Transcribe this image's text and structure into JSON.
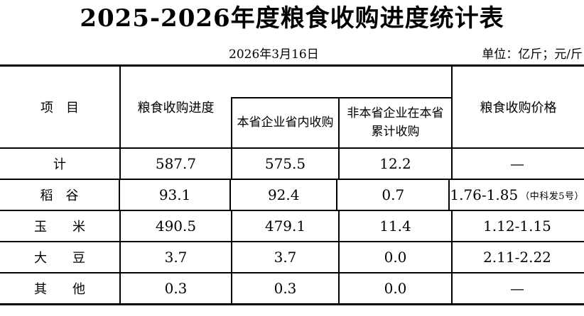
{
  "title": "2025-2026年度粮食收购进度统计表",
  "meta": {
    "date": "2026年3月16日",
    "unit": "单位：亿斤；元/斤"
  },
  "colors": {
    "ink": "#000000",
    "background": "#ffffff"
  },
  "table": {
    "headers": {
      "item": "项　目",
      "progress": "粮食收购进度",
      "local": "本省企业省内收购",
      "nonlocal": "非本省企业在本省\n累计收购",
      "price": "粮食收购价格"
    },
    "rows": [
      {
        "item": "计",
        "progress": "587.7",
        "local": "575.5",
        "nonlocal": "12.2",
        "price": "—",
        "price_note": ""
      },
      {
        "item": "稻　谷",
        "progress": "93.1",
        "local": "92.4",
        "nonlocal": "0.7",
        "price": "1.76-1.85",
        "price_note": "（中科发5号）"
      },
      {
        "item": "玉　　米",
        "progress": "490.5",
        "local": "479.1",
        "nonlocal": "11.4",
        "price": "1.12-1.15",
        "price_note": ""
      },
      {
        "item": "大　　豆",
        "progress": "3.7",
        "local": "3.7",
        "nonlocal": "0.0",
        "price": "2.11-2.22",
        "price_note": ""
      },
      {
        "item": "其　　他",
        "progress": "0.3",
        "local": "0.3",
        "nonlocal": "0.0",
        "price": "—",
        "price_note": ""
      }
    ]
  }
}
